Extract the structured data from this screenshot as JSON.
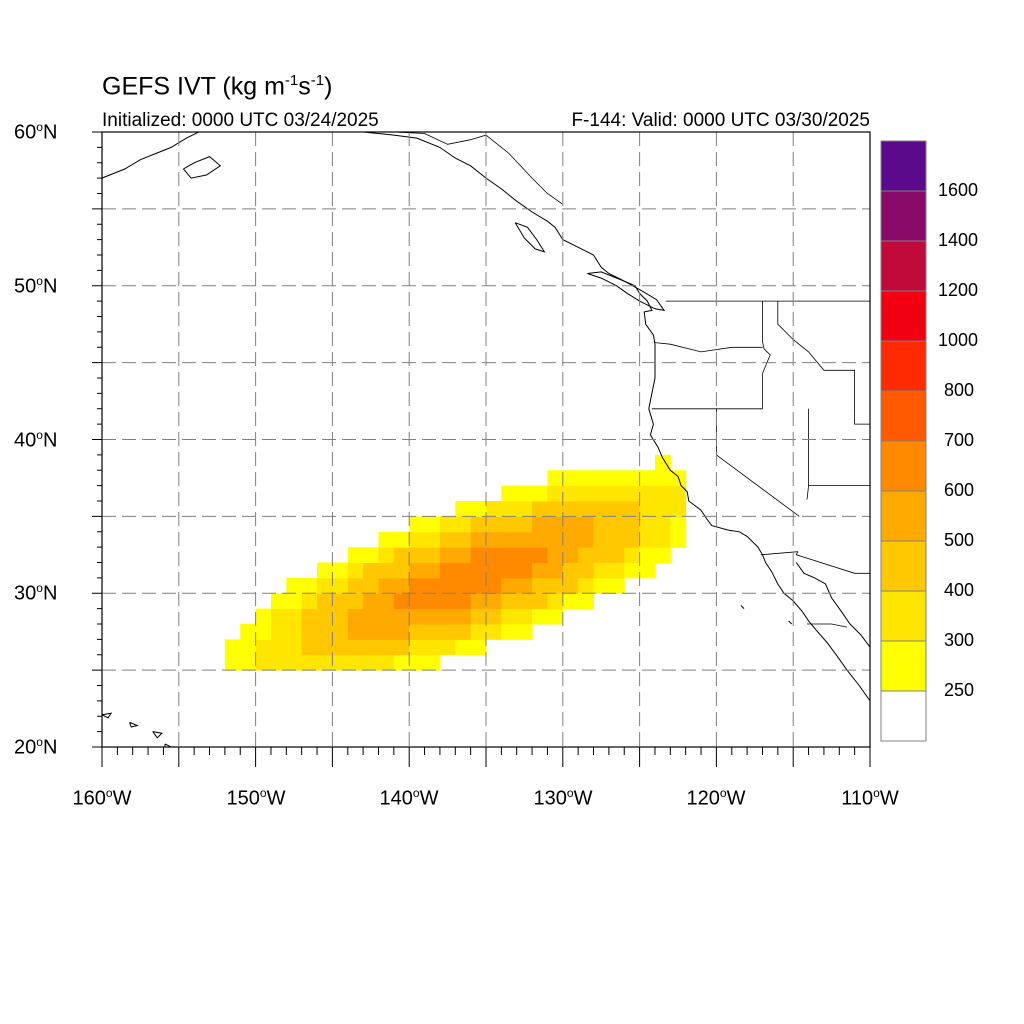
{
  "title": {
    "prefix": "GEFS IVT (kg m",
    "exp1": "-1",
    "mid": "s",
    "exp2": "-1",
    "suffix": ")"
  },
  "initialized": "Initialized: 0000 UTC 03/24/2025",
  "valid": "F-144: Valid: 0000 UTC 03/30/2025",
  "lat_labels": [
    {
      "num": "60",
      "hemi": "N"
    },
    {
      "num": "50",
      "hemi": "N"
    },
    {
      "num": "40",
      "hemi": "N"
    },
    {
      "num": "30",
      "hemi": "N"
    },
    {
      "num": "20",
      "hemi": "N"
    }
  ],
  "lon_labels": [
    {
      "num": "160",
      "hemi": "W"
    },
    {
      "num": "150",
      "hemi": "W"
    },
    {
      "num": "140",
      "hemi": "W"
    },
    {
      "num": "130",
      "hemi": "W"
    },
    {
      "num": "120",
      "hemi": "W"
    },
    {
      "num": "110",
      "hemi": "W"
    }
  ],
  "degree_symbol": "o",
  "colorbar": {
    "labels": [
      "1600",
      "1400",
      "1200",
      "1000",
      "800",
      "700",
      "600",
      "500",
      "400",
      "300",
      "250"
    ],
    "colors": [
      "#5a0a8a",
      "#8a0a6a",
      "#c00a3a",
      "#f00010",
      "#ff2a00",
      "#ff5a00",
      "#ff8a00",
      "#ffaa00",
      "#ffc800",
      "#ffe600",
      "#ffff00",
      "#ffffff"
    ]
  },
  "map_extent": {
    "lon_min": -160,
    "lon_max": -110,
    "lat_min": 20,
    "lat_max": 60
  },
  "ivt_field": {
    "description_units": "kg m-1 s-1",
    "levels": [
      250,
      300,
      400,
      500,
      600
    ],
    "colors": {
      "250": "#ffff00",
      "300": "#ffe600",
      "400": "#ffc800",
      "500": "#ffaa00",
      "600": "#ff8a00"
    },
    "max_region_center": {
      "lon": -136,
      "lat": 31
    }
  }
}
